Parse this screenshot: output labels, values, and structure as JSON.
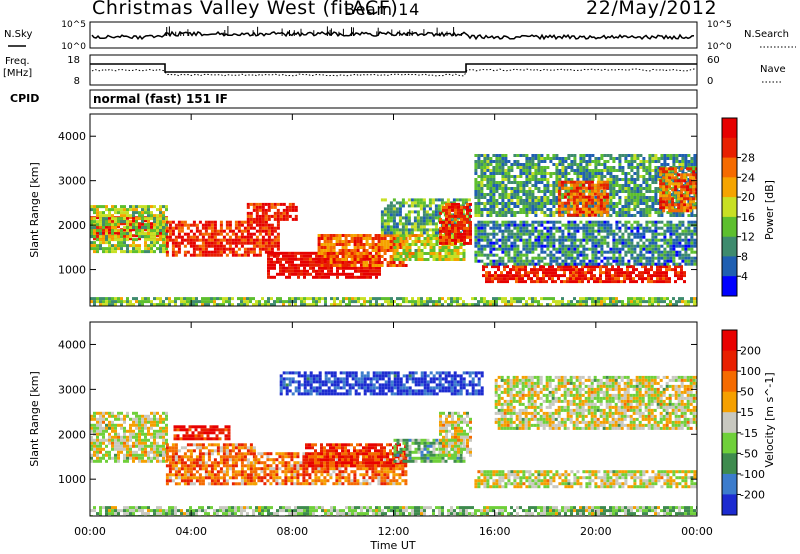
{
  "header": {
    "station": "Christmas Valley West (fitACF)",
    "beam": "Beam 14",
    "date": "22/May/2012",
    "cpid_label": "CPID",
    "program": "normal (fast) 151 IF"
  },
  "sky_noise": {
    "left_label": "N.Sky",
    "right_label": "N.Search",
    "left_ticks": [
      "10^5",
      "10^0"
    ],
    "right_ticks": [
      "10^5",
      "10^0"
    ]
  },
  "freq_nave": {
    "left_label_1": "Freq.",
    "left_label_2": "[MHz]",
    "right_label": "Nave",
    "left_ticks": [
      "18",
      "8"
    ],
    "right_ticks": [
      "60",
      "0"
    ]
  },
  "chart_data": [
    {
      "type": "heatmap",
      "title": "",
      "xlabel": "Time UT",
      "ylabel": "Slant Range [km]",
      "xlim_hours": [
        0,
        24
      ],
      "ylim_km": [
        180,
        4500
      ],
      "x_ticks": [
        "00:00",
        "04:00",
        "08:00",
        "12:00",
        "16:00",
        "20:00",
        "00:00"
      ],
      "y_ticks": [
        1000,
        2000,
        3000,
        4000
      ],
      "colorbar": {
        "label": "Power [dB]",
        "ticks": [
          "4",
          "8",
          "12",
          "16",
          "20",
          "24",
          "28"
        ],
        "colors": [
          "#0000ff",
          "#1f5fb2",
          "#3e8b6e",
          "#5dbf2e",
          "#c8e024",
          "#f5a400",
          "#f56b00",
          "#e82000",
          "#e60000"
        ]
      },
      "regions": [
        {
          "t0": 0.0,
          "t1": 3.0,
          "r0": 1700,
          "r1": 2200,
          "level": 0.9
        },
        {
          "t0": 0.0,
          "t1": 3.0,
          "r0": 1400,
          "r1": 2450,
          "level": 0.45
        },
        {
          "t0": 3.0,
          "t1": 7.5,
          "r0": 1300,
          "r1": 2100,
          "level": 0.85
        },
        {
          "t0": 6.2,
          "t1": 8.2,
          "r0": 2100,
          "r1": 2500,
          "level": 0.9
        },
        {
          "t0": 7.0,
          "t1": 11.5,
          "r0": 800,
          "r1": 1400,
          "level": 0.95
        },
        {
          "t0": 9.0,
          "t1": 12.5,
          "r0": 1100,
          "r1": 1800,
          "level": 0.75
        },
        {
          "t0": 12.0,
          "t1": 14.8,
          "r0": 1200,
          "r1": 1800,
          "level": 0.5
        },
        {
          "t0": 11.5,
          "t1": 15.0,
          "r0": 1800,
          "r1": 2600,
          "level": 0.35
        },
        {
          "t0": 13.8,
          "t1": 15.0,
          "r0": 1600,
          "r1": 2500,
          "level": 0.85
        },
        {
          "t0": 15.5,
          "t1": 23.5,
          "r0": 700,
          "r1": 1100,
          "level": 0.9
        },
        {
          "t0": 15.2,
          "t1": 24.0,
          "r0": 1100,
          "r1": 2100,
          "level": 0.25
        },
        {
          "t0": 15.2,
          "t1": 24.0,
          "r0": 2200,
          "r1": 3600,
          "level": 0.3
        },
        {
          "t0": 18.5,
          "t1": 20.5,
          "r0": 2200,
          "r1": 3000,
          "level": 0.75
        },
        {
          "t0": 22.5,
          "t1": 24.0,
          "r0": 2300,
          "r1": 3300,
          "level": 0.75
        },
        {
          "t0": 0.0,
          "t1": 24.0,
          "r0": 180,
          "r1": 380,
          "level": 0.4
        }
      ]
    },
    {
      "type": "heatmap",
      "title": "",
      "xlabel": "Time UT",
      "ylabel": "Slant Range [km]",
      "xlim_hours": [
        0,
        24
      ],
      "ylim_km": [
        180,
        4500
      ],
      "x_ticks": [
        "00:00",
        "04:00",
        "08:00",
        "12:00",
        "16:00",
        "20:00",
        "00:00"
      ],
      "y_ticks": [
        1000,
        2000,
        3000,
        4000
      ],
      "colorbar": {
        "label": "Velocity [m s^-1]",
        "ticks": [
          "200",
          "100",
          "50",
          "15",
          "-15",
          "-50",
          "-100",
          "-200"
        ],
        "colors": [
          "#1c2bd0",
          "#3c7ccc",
          "#3e8b4e",
          "#6fd03a",
          "#c8c8c0",
          "#f5a000",
          "#f56b00",
          "#e82000",
          "#e80000"
        ]
      },
      "regions": [
        {
          "t0": 0.0,
          "t1": 3.0,
          "r0": 1400,
          "r1": 2500,
          "level": 0.5
        },
        {
          "t0": 3.0,
          "t1": 6.5,
          "r0": 900,
          "r1": 1800,
          "level": 0.7
        },
        {
          "t0": 3.3,
          "t1": 5.5,
          "r0": 1900,
          "r1": 2200,
          "level": 0.9
        },
        {
          "t0": 6.5,
          "t1": 12.5,
          "r0": 900,
          "r1": 1600,
          "level": 0.7
        },
        {
          "t0": 8.5,
          "t1": 12.5,
          "r0": 1300,
          "r1": 1800,
          "level": 0.85
        },
        {
          "t0": 12.0,
          "t1": 14.8,
          "r0": 1400,
          "r1": 1900,
          "level": 0.35
        },
        {
          "t0": 13.8,
          "t1": 15.0,
          "r0": 1500,
          "r1": 2500,
          "level": 0.5
        },
        {
          "t0": 15.2,
          "t1": 24.0,
          "r0": 800,
          "r1": 1200,
          "level": 0.5
        },
        {
          "t0": 16.0,
          "t1": 24.0,
          "r0": 2100,
          "r1": 3300,
          "level": 0.5
        },
        {
          "t0": 7.5,
          "t1": 15.5,
          "r0": 2900,
          "r1": 3400,
          "level": 0.05
        },
        {
          "t0": 0.0,
          "t1": 24.0,
          "r0": 180,
          "r1": 400,
          "level": 0.4
        }
      ]
    }
  ]
}
